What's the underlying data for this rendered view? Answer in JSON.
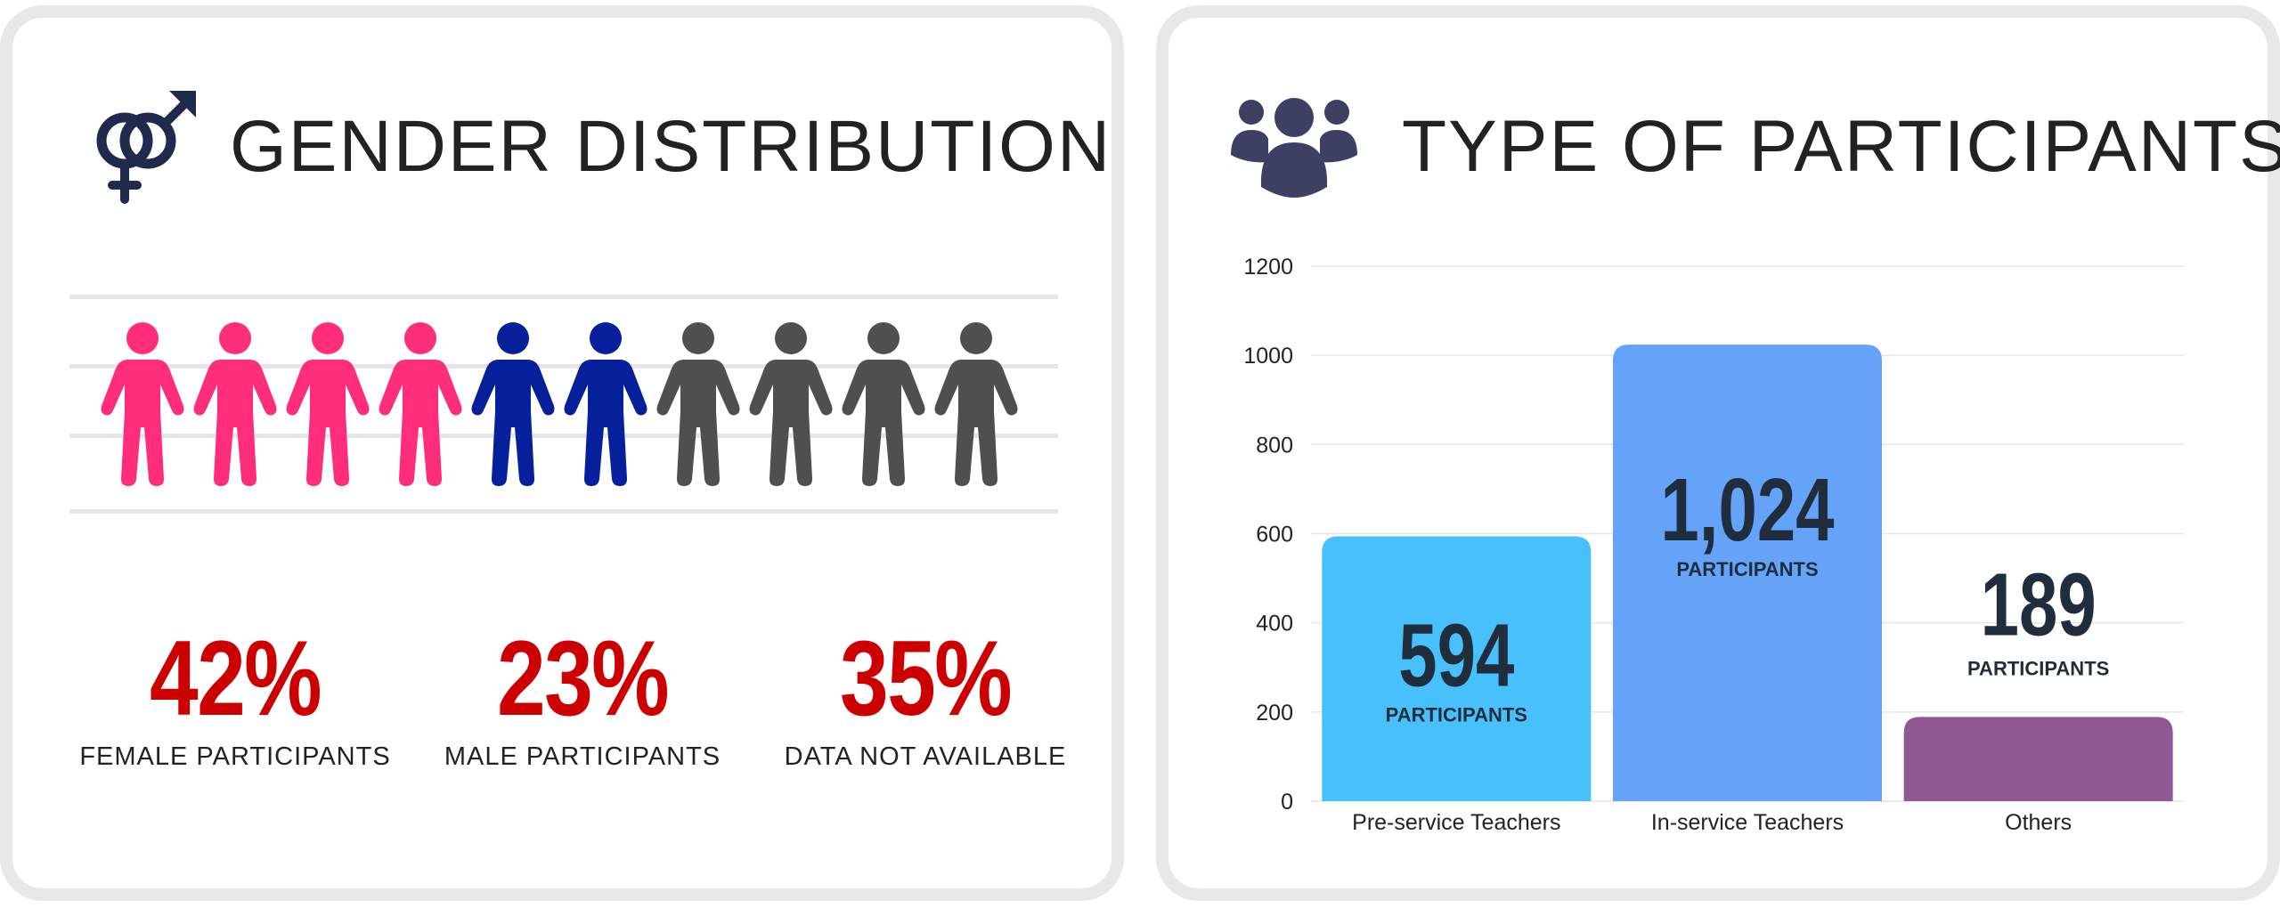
{
  "gender": {
    "title": "GENDER DISTRIBUTION",
    "icon": "gender-symbol-icon",
    "people": [
      "female",
      "female",
      "female",
      "female",
      "male",
      "male",
      "unknown",
      "unknown",
      "unknown",
      "unknown"
    ],
    "colors": {
      "female": "#ff2d7a",
      "male": "#06209b",
      "unknown": "#4f4f4f",
      "accent": "#cc0000"
    },
    "stats": [
      {
        "value": "42%",
        "label": "FEMALE PARTICIPANTS"
      },
      {
        "value": "23%",
        "label": "MALE PARTICIPANTS"
      },
      {
        "value": "35%",
        "label": "DATA NOT AVAILABLE"
      }
    ]
  },
  "participants": {
    "title": "TYPE OF PARTICIPANTS",
    "icon": "group-icon"
  },
  "chart_data": {
    "type": "bar",
    "categories": [
      "Pre-service Teachers",
      "In-service Teachers",
      "Others"
    ],
    "values": [
      594,
      1024,
      189
    ],
    "data_labels": [
      "594",
      "1,024",
      "189"
    ],
    "data_label_suffix": "PARTICIPANTS",
    "colors": [
      "#48c0fc",
      "#64a3f7",
      "#8f5894"
    ],
    "yticks": [
      "0",
      "200",
      "400",
      "600",
      "800",
      "1000",
      "1200"
    ],
    "ylim": [
      0,
      1200
    ],
    "grid": true
  }
}
